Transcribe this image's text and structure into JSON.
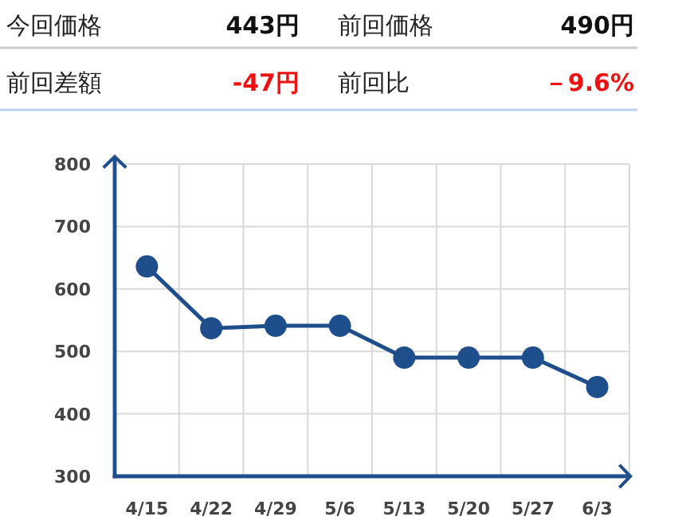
{
  "chart_data": [
    {
      "type": "other",
      "annotations": [
        "今回価格",
        "443円",
        "前回価格",
        "490円",
        "前回差額",
        "-47円",
        "前回比",
        "－9.6%"
      ],
      "colors": [
        "#222222",
        "#111111",
        "#222222",
        "#111111",
        "#222222",
        "#ee1111",
        "#222222",
        "#ee1111"
      ]
    },
    {
      "type": "line",
      "categories": [
        "4/15",
        "4/22",
        "4/29",
        "5/6",
        "5/13",
        "5/20",
        "5/27",
        "6/3"
      ],
      "series": [
        {
          "color": "#1f4e8c",
          "values": [
            636,
            537,
            541,
            541,
            490,
            490,
            490,
            443
          ]
        }
      ],
      "ylim": [
        300,
        800
      ],
      "yticks": [
        300,
        400,
        500,
        600,
        700,
        800
      ],
      "grid": true,
      "marker": "circle",
      "line_style": "solid"
    }
  ]
}
